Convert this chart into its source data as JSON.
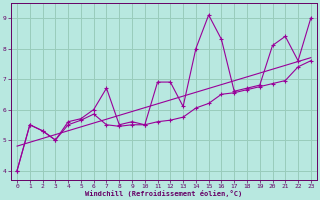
{
  "xlabel": "Windchill (Refroidissement éolien,°C)",
  "ylabel": "",
  "background_color": "#b8e8e0",
  "fig_background": "#b8e8e0",
  "grid_color": "#99ccbb",
  "line_color": "#990099",
  "xlim": [
    -0.5,
    23.5
  ],
  "ylim": [
    3.7,
    9.5
  ],
  "yticks": [
    4,
    5,
    6,
    7,
    8,
    9
  ],
  "xticks": [
    0,
    1,
    2,
    3,
    4,
    5,
    6,
    7,
    8,
    9,
    10,
    11,
    12,
    13,
    14,
    15,
    16,
    17,
    18,
    19,
    20,
    21,
    22,
    23
  ],
  "series1_x": [
    0,
    1,
    2,
    3,
    4,
    5,
    6,
    7,
    8,
    9,
    10,
    11,
    12,
    13,
    14,
    15,
    16,
    17,
    18,
    19,
    20,
    21,
    22,
    23
  ],
  "series1_y": [
    4.0,
    5.5,
    5.3,
    5.0,
    5.6,
    5.7,
    6.0,
    6.7,
    5.5,
    5.6,
    5.5,
    6.9,
    6.9,
    6.1,
    8.0,
    9.1,
    8.3,
    6.6,
    6.7,
    6.8,
    8.1,
    8.4,
    7.6,
    9.0
  ],
  "series2_x": [
    0,
    1,
    2,
    3,
    4,
    5,
    6,
    7,
    8,
    9,
    10,
    11,
    12,
    13,
    14,
    15,
    16,
    17,
    18,
    19,
    20,
    21,
    22,
    23
  ],
  "series2_y": [
    4.0,
    5.5,
    5.3,
    5.0,
    5.5,
    5.65,
    5.85,
    5.5,
    5.45,
    5.5,
    5.5,
    5.6,
    5.65,
    5.75,
    6.05,
    6.2,
    6.5,
    6.55,
    6.65,
    6.75,
    6.85,
    6.95,
    7.4,
    7.6
  ],
  "series3_x": [
    0,
    23
  ],
  "series3_y": [
    4.8,
    7.7
  ],
  "marker": "+"
}
